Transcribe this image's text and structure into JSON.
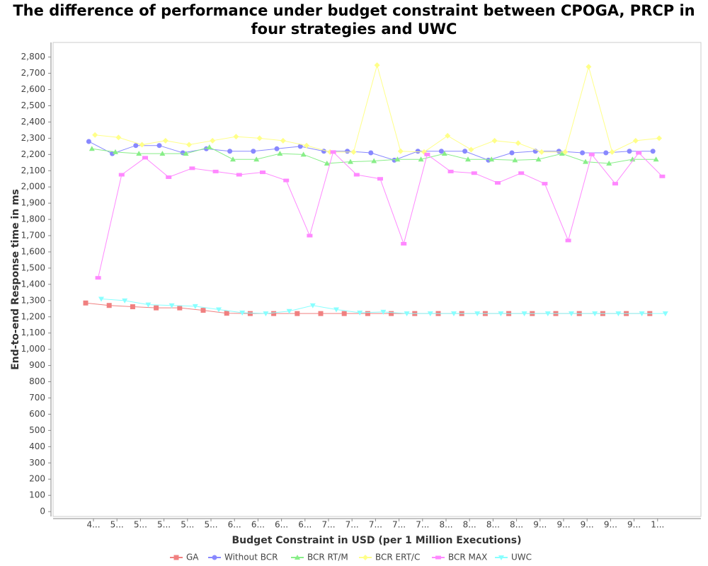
{
  "chart_data": {
    "type": "line",
    "title": "The difference of performance under budget constraint between CPOGA, PRCP in  four strategies and UWC",
    "x_label": "Budget Constraint in USD (per 1 Million Executions)",
    "y_label": "End-to-end Response time in ms",
    "categories": [
      "4...",
      "5...",
      "5...",
      "5...",
      "5...",
      "5...",
      "6...",
      "6...",
      "6...",
      "6...",
      "7...",
      "7...",
      "7...",
      "7...",
      "7...",
      "8...",
      "8...",
      "8...",
      "8...",
      "9...",
      "9...",
      "9...",
      "9...",
      "9...",
      "1..."
    ],
    "series": [
      {
        "name": "GA",
        "color": "#f08080",
        "values": [
          1285,
          1270,
          1262,
          1255,
          1255,
          1240,
          1222,
          1220,
          1220,
          1220,
          1220,
          1220,
          1220,
          1220,
          1220,
          1220,
          1220,
          1220,
          1220,
          1220,
          1220,
          1220,
          1220,
          1220,
          1220
        ]
      },
      {
        "name": "Without BCR",
        "color": "#8888ff",
        "values": [
          2280,
          2205,
          2255,
          2255,
          2210,
          2235,
          2220,
          2220,
          2235,
          2250,
          2220,
          2220,
          2210,
          2165,
          2220,
          2220,
          2220,
          2165,
          2210,
          2220,
          2220,
          2210,
          2210,
          2220,
          2220
        ]
      },
      {
        "name": "BCR RT/M",
        "color": "#88ee88",
        "values": [
          2235,
          2215,
          2205,
          2205,
          2205,
          2245,
          2170,
          2170,
          2205,
          2200,
          2145,
          2155,
          2160,
          2170,
          2170,
          2205,
          2170,
          2170,
          2165,
          2170,
          2205,
          2155,
          2145,
          2170,
          2170
        ]
      },
      {
        "name": "BCR ERT/C",
        "color": "#ffff88",
        "values": [
          2320,
          2305,
          2260,
          2285,
          2260,
          2285,
          2310,
          2300,
          2285,
          2255,
          2215,
          2215,
          2750,
          2220,
          2215,
          2315,
          2230,
          2285,
          2270,
          2215,
          2215,
          2740,
          2215,
          2285,
          2300
        ]
      },
      {
        "name": "BCR MAX",
        "color": "#ff88ff",
        "values": [
          1440,
          2075,
          2180,
          2060,
          2115,
          2095,
          2075,
          2090,
          2040,
          1700,
          2215,
          2075,
          2050,
          1650,
          2200,
          2095,
          2085,
          2025,
          2085,
          2020,
          1670,
          2200,
          2020,
          2210,
          2065
        ]
      },
      {
        "name": "UWC",
        "color": "#88ffff",
        "values": [
          1310,
          1300,
          1275,
          1270,
          1265,
          1245,
          1225,
          1220,
          1235,
          1270,
          1245,
          1225,
          1230,
          1220,
          1220,
          1220,
          1220,
          1220,
          1220,
          1220,
          1220,
          1220,
          1220,
          1220,
          1220
        ]
      }
    ],
    "ylim": [
      -30,
      2890
    ],
    "yticks": [
      0,
      100,
      200,
      300,
      400,
      500,
      600,
      700,
      800,
      900,
      {
        "value": 1000,
        "label": "1,000"
      },
      {
        "value": 1100,
        "label": "1,100"
      },
      {
        "value": 1200,
        "label": "1,200"
      },
      {
        "value": 1300,
        "label": "1,300"
      },
      {
        "value": 1400,
        "label": "1,400"
      },
      {
        "value": 1500,
        "label": "1,500"
      },
      {
        "value": 1600,
        "label": "1,600"
      },
      {
        "value": 1700,
        "label": "1,700"
      },
      {
        "value": 1800,
        "label": "1,800"
      },
      {
        "value": 1900,
        "label": "1,900"
      },
      {
        "value": 2000,
        "label": "2,000"
      },
      {
        "value": 2100,
        "label": "2,100"
      },
      {
        "value": 2200,
        "label": "2,200"
      },
      {
        "value": 2300,
        "label": "2,300"
      },
      {
        "value": 2400,
        "label": "2,400"
      },
      {
        "value": 2500,
        "label": "2,500"
      },
      {
        "value": 2600,
        "label": "2,600"
      },
      {
        "value": 2700,
        "label": "2,700"
      },
      {
        "value": 2800,
        "label": "2,800"
      }
    ],
    "grid": false,
    "legend": "bottom"
  }
}
